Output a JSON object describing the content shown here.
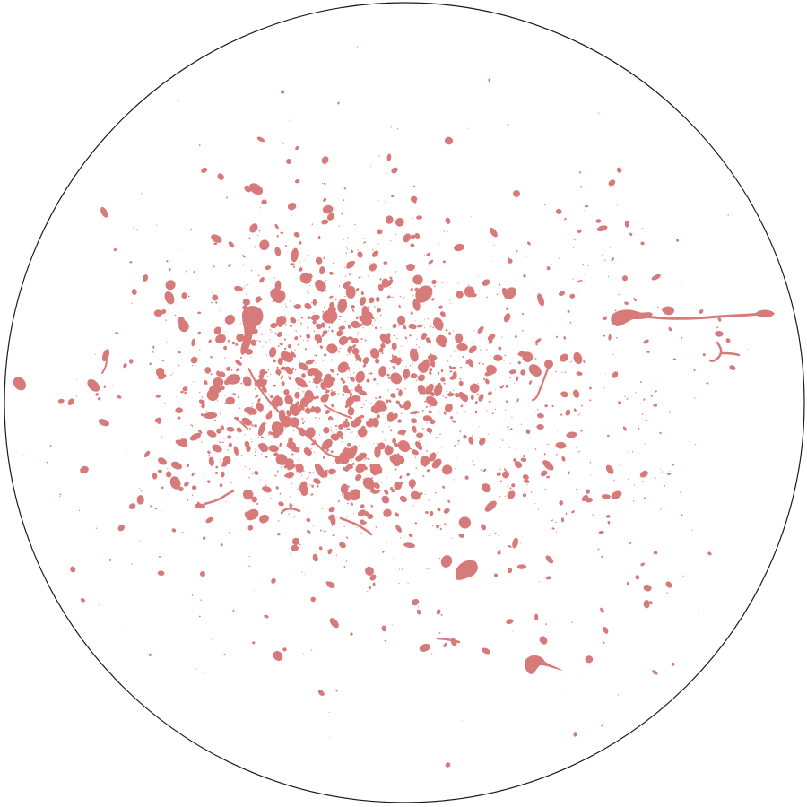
{
  "colors": {
    "background": "#ffffff",
    "outline": "#1a1a1a",
    "splatter": "#d77a7a"
  },
  "image": {
    "subject": "splatter-pattern",
    "frame": "circle"
  }
}
